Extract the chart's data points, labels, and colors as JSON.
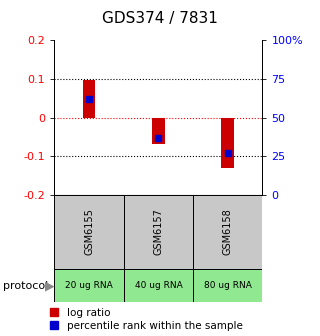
{
  "title": "GDS374 / 7831",
  "samples": [
    "GSM6155",
    "GSM6157",
    "GSM6158"
  ],
  "log_ratios": [
    0.097,
    -0.068,
    -0.13
  ],
  "percentile_ranks": [
    0.62,
    0.37,
    0.27
  ],
  "protocol_labels": [
    "20 ug RNA",
    "40 ug RNA",
    "80 ug RNA"
  ],
  "ylim_left": [
    -0.2,
    0.2
  ],
  "ylim_right": [
    0,
    100
  ],
  "bar_color": "#cc0000",
  "percentile_color": "#0000cc",
  "bar_width": 0.18,
  "yticks_left": [
    -0.2,
    -0.1,
    0.0,
    0.1,
    0.2
  ],
  "yticks_right": [
    0,
    25,
    50,
    75,
    100
  ],
  "ytick_labels_right": [
    "0",
    "25",
    "50",
    "75",
    "100%"
  ],
  "hline_black_vals": [
    0.1,
    -0.1
  ],
  "hline_red_val": 0.0,
  "title_fontsize": 11,
  "tick_fontsize": 8,
  "legend_fontsize": 7.5,
  "gray_bg": "#c8c8c8",
  "green_bg": "#90e890",
  "protocol_label": "protocol"
}
